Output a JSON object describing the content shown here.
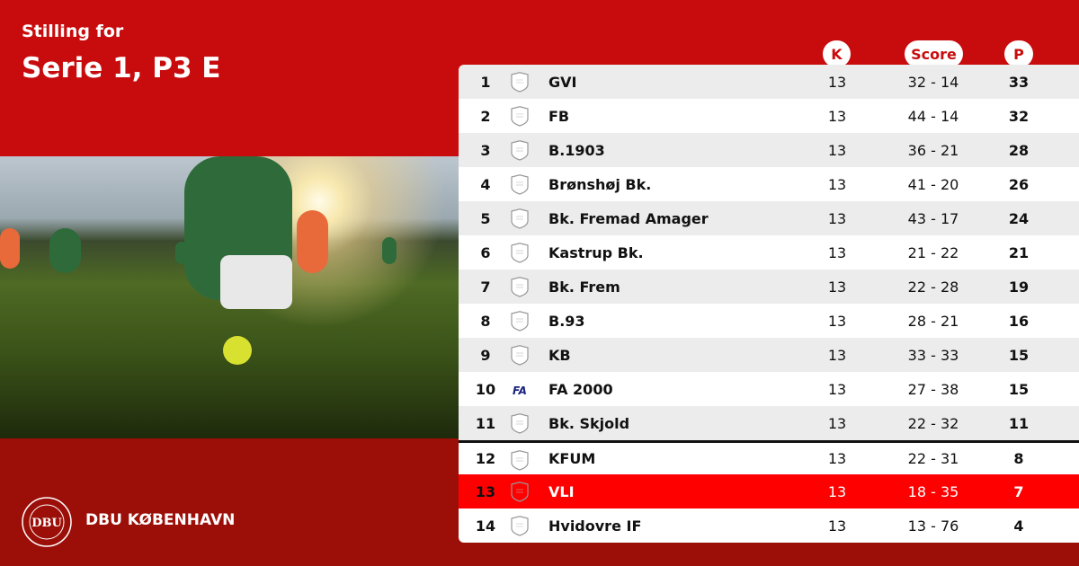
{
  "header": {
    "subtitle": "Stilling for",
    "title": "Serie 1, P3 E"
  },
  "columns": {
    "k": "K",
    "score": "Score",
    "p": "P"
  },
  "brand": {
    "name": "DBU KØBENHAVN",
    "logo_text": "DBU",
    "logo_ring": "DANSK BOLDSPIL-UNION 1889"
  },
  "colors": {
    "primary_red": "#c80c0e",
    "dark_red": "#9b0f08",
    "highlight": "#ff0000"
  },
  "rows": [
    {
      "pos": "1",
      "team": "GVI",
      "k": "13",
      "score": "32 - 14",
      "p": "33",
      "crest": "shield-icon"
    },
    {
      "pos": "2",
      "team": "FB",
      "k": "13",
      "score": "44 - 14",
      "p": "32",
      "crest": "shield-icon"
    },
    {
      "pos": "3",
      "team": "B.1903",
      "k": "13",
      "score": "36 - 21",
      "p": "28",
      "crest": "shield-icon"
    },
    {
      "pos": "4",
      "team": "Brønshøj Bk.",
      "k": "13",
      "score": "41 - 20",
      "p": "26",
      "crest": "shield-icon"
    },
    {
      "pos": "5",
      "team": "Bk. Fremad Amager",
      "k": "13",
      "score": "43 - 17",
      "p": "24",
      "crest": "shield-icon"
    },
    {
      "pos": "6",
      "team": "Kastrup Bk.",
      "k": "13",
      "score": "21 - 22",
      "p": "21",
      "crest": "shield-icon"
    },
    {
      "pos": "7",
      "team": "Bk. Frem",
      "k": "13",
      "score": "22 - 28",
      "p": "19",
      "crest": "shield-icon"
    },
    {
      "pos": "8",
      "team": "B.93",
      "k": "13",
      "score": "28 - 21",
      "p": "16",
      "crest": "shield-icon"
    },
    {
      "pos": "9",
      "team": "KB",
      "k": "13",
      "score": "33 - 33",
      "p": "15",
      "crest": "shield-icon"
    },
    {
      "pos": "10",
      "team": "FA 2000",
      "k": "13",
      "score": "27 - 38",
      "p": "15",
      "crest": "fa-logo-icon",
      "crest_text": "FA"
    },
    {
      "pos": "11",
      "team": "Bk. Skjold",
      "k": "13",
      "score": "22 - 32",
      "p": "11",
      "crest": "shield-icon"
    },
    {
      "pos": "12",
      "team": "KFUM",
      "k": "13",
      "score": "22 - 31",
      "p": "8",
      "crest": "shield-icon"
    },
    {
      "pos": "13",
      "team": "VLI",
      "k": "13",
      "score": "18 - 35",
      "p": "7",
      "crest": "shield-icon",
      "highlighted": true
    },
    {
      "pos": "14",
      "team": "Hvidovre IF",
      "k": "13",
      "score": "13 - 76",
      "p": "4",
      "crest": "shield-icon"
    }
  ]
}
